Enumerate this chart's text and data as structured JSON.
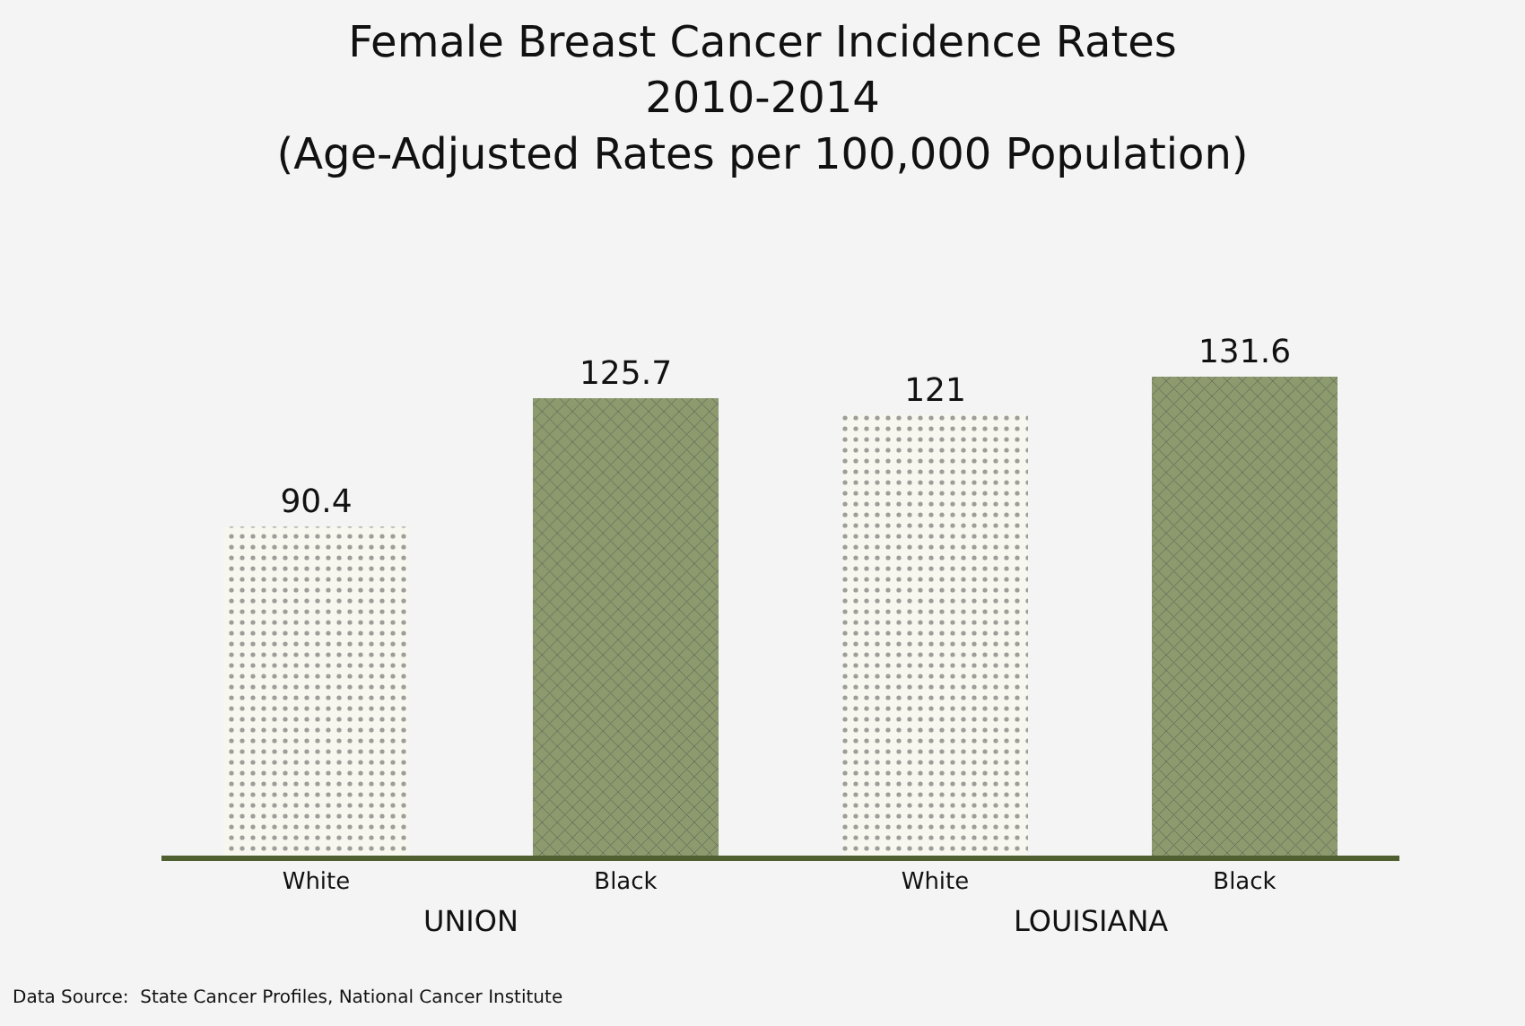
{
  "chart_data": {
    "type": "bar",
    "title": "Female Breast Cancer Incidence Rates",
    "subtitle": "2010-2014\n(Age-Adjusted Rates per 100,000 Population)",
    "categories": [
      "White",
      "Black",
      "White",
      "Black"
    ],
    "values": [
      90.4,
      125.7,
      121,
      131.6
    ],
    "colors": [
      "#f7f7ef",
      "#8c9a6e",
      "#f7f7ef",
      "#8c9a6e"
    ],
    "data_labels": true,
    "grid": false,
    "annotations": [
      "UNION",
      "LOUISIANA",
      "Data Source:  State Cancer Profiles, National Cancer Institute"
    ]
  }
}
